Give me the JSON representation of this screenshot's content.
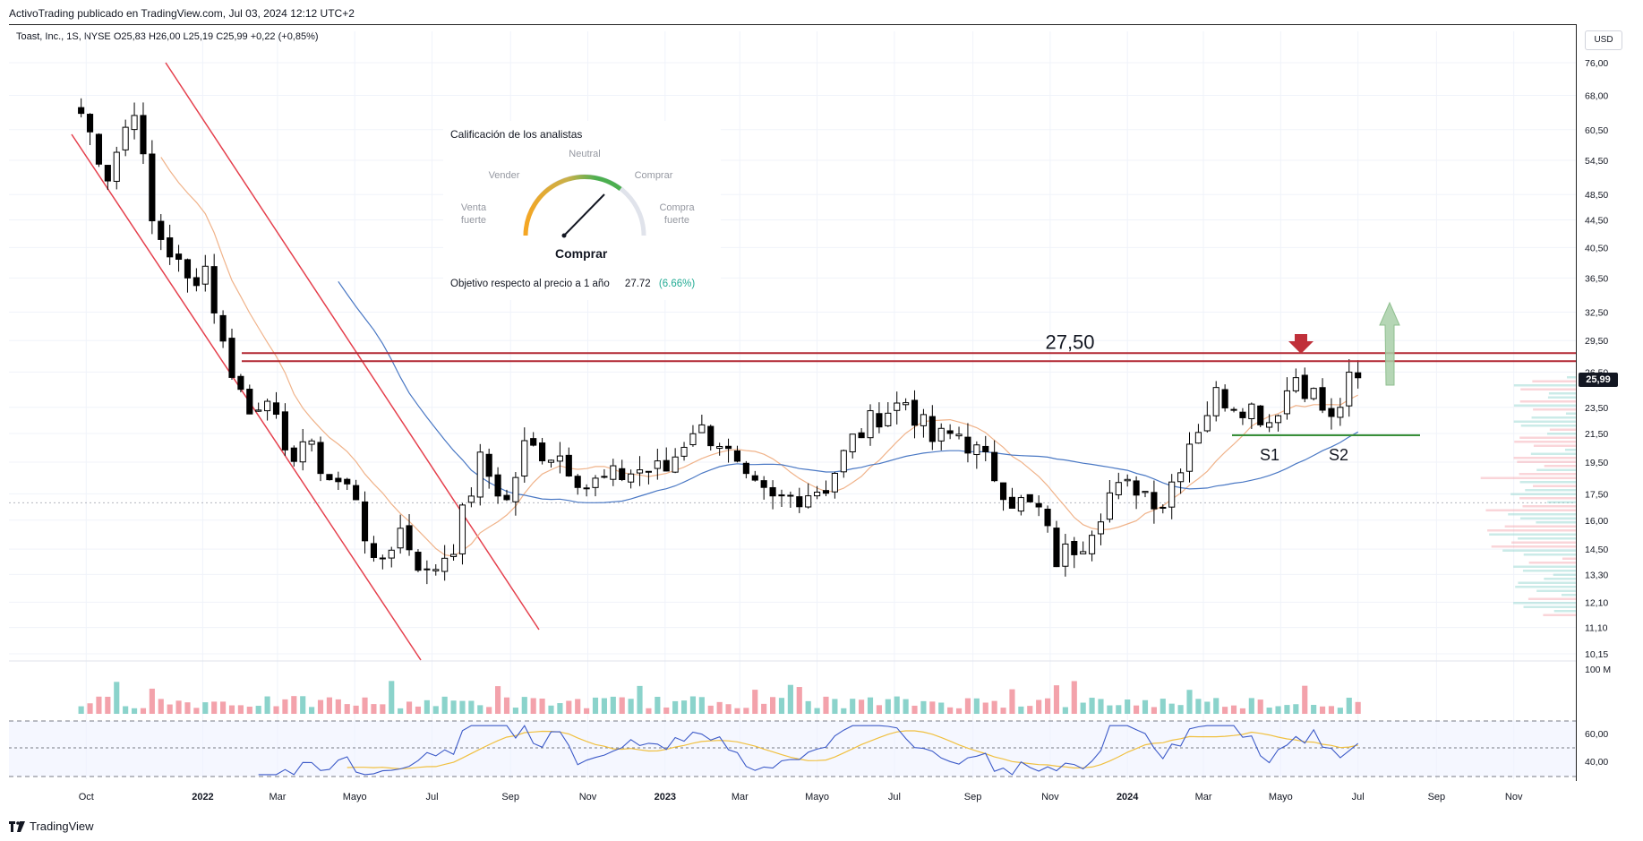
{
  "header": {
    "published_by": "ActivoTrading publicado en TradingView.com, Jul 03, 2024 12:12 UTC+2",
    "symbol_line": "Toast, Inc., 1S, NYSE  O25,83  H26,00  L25,19  C25,99  +0,22 (+0,85%)"
  },
  "price_scale": {
    "currency_button": "USD",
    "last_price_tag": "25,99",
    "volume_label": "100 M",
    "rsi_labels": [
      "60,00",
      "40,00"
    ]
  },
  "analyst_widget": {
    "title": "Calificación de los analistas",
    "labels": {
      "neutral": "Neutral",
      "sell": "Vender",
      "buy": "Comprar",
      "strong_sell": "Venta fuerte",
      "strong_buy": "Compra fuerte"
    },
    "verdict": "Comprar",
    "target_label": "Objetivo respecto al precio a 1 año",
    "target_value": "27.72",
    "target_pct": "(6.66%)"
  },
  "annotations": {
    "resistance_label": "27,50",
    "support_1": "S1",
    "support_2": "S2"
  },
  "colors": {
    "up_candle": "#ffffff",
    "down_candle": "#000000",
    "resistance": "#b22833",
    "support": "#3a8f3a",
    "channel": "#e5404d",
    "ma_fast": "#f0b38a",
    "ma_slow": "#4a78c4",
    "volume_up": "#8bd3cb",
    "volume_down": "#f3a2ab",
    "rsi_line": "#3c5ac8",
    "rsi_ma": "#f0c040",
    "up_arrow": "#a8cfa8",
    "down_arrow": "#c0303a",
    "positive_pct": "#22ab94"
  },
  "chart_data": {
    "type": "candlestick",
    "symbol": "Toast, Inc.",
    "interval": "1S",
    "exchange": "NYSE",
    "y_scale": "log",
    "y_ticks": [
      76.0,
      68.0,
      60.5,
      54.5,
      48.5,
      44.5,
      40.5,
      36.5,
      32.5,
      29.5,
      26.5,
      23.5,
      21.5,
      19.5,
      17.5,
      16.0,
      14.5,
      13.3,
      12.1,
      11.1,
      10.15
    ],
    "y_tick_labels": [
      "76,00",
      "68,00",
      "60,50",
      "54,50",
      "48,50",
      "44,50",
      "40,50",
      "36,50",
      "32,50",
      "29,50",
      "26,50",
      "23,50",
      "21,50",
      "19,50",
      "17,50",
      "16,00",
      "14,50",
      "13,30",
      "12,10",
      "11,10",
      "10,15"
    ],
    "x_tick_labels": [
      "Oct",
      "2022",
      "Mar",
      "Mayo",
      "Jul",
      "Sep",
      "Nov",
      "2023",
      "Mar",
      "Mayo",
      "Jul",
      "Sep",
      "Nov",
      "2024",
      "Mar",
      "Mayo",
      "Jul",
      "Sep",
      "Nov"
    ],
    "path": [
      [
        "2021-09-27",
        64
      ],
      [
        "2021-10-18",
        52
      ],
      [
        "2021-11-08",
        66
      ],
      [
        "2021-11-22",
        44
      ],
      [
        "2021-12-06",
        40
      ],
      [
        "2021-12-20",
        36
      ],
      [
        "2022-01-03",
        38
      ],
      [
        "2022-01-17",
        29
      ],
      [
        "2022-02-07",
        23
      ],
      [
        "2022-02-21",
        25
      ],
      [
        "2022-03-07",
        19.5
      ],
      [
        "2022-03-21",
        21
      ],
      [
        "2022-04-11",
        18.5
      ],
      [
        "2022-05-02",
        17.5
      ],
      [
        "2022-05-16",
        13.5
      ],
      [
        "2022-06-06",
        15.5
      ],
      [
        "2022-06-27",
        13.2
      ],
      [
        "2022-07-18",
        14.8
      ],
      [
        "2022-08-08",
        19.5
      ],
      [
        "2022-08-29",
        17
      ],
      [
        "2022-09-12",
        20.5
      ],
      [
        "2022-10-10",
        20
      ],
      [
        "2022-10-31",
        18
      ],
      [
        "2022-11-21",
        18.5
      ],
      [
        "2022-12-12",
        19
      ],
      [
        "2023-01-02",
        19
      ],
      [
        "2023-01-23",
        22
      ],
      [
        "2023-02-13",
        21
      ],
      [
        "2023-03-06",
        18
      ],
      [
        "2023-03-27",
        17
      ],
      [
        "2023-04-17",
        17.5
      ],
      [
        "2023-05-08",
        18
      ],
      [
        "2023-05-29",
        21
      ],
      [
        "2023-06-19",
        23
      ],
      [
        "2023-07-10",
        24
      ],
      [
        "2023-07-31",
        21
      ],
      [
        "2023-08-21",
        21.5
      ],
      [
        "2023-09-11",
        19.5
      ],
      [
        "2023-10-02",
        17.2
      ],
      [
        "2023-10-23",
        16.5
      ],
      [
        "2023-11-06",
        14
      ],
      [
        "2023-11-27",
        15
      ],
      [
        "2023-12-18",
        17.5
      ],
      [
        "2024-01-08",
        18
      ],
      [
        "2024-01-29",
        17
      ],
      [
        "2024-02-19",
        21
      ],
      [
        "2024-03-11",
        24.5
      ],
      [
        "2024-04-08",
        23.5
      ],
      [
        "2024-04-22",
        22.5
      ],
      [
        "2024-05-13",
        26.2
      ],
      [
        "2024-05-27",
        24.5
      ],
      [
        "2024-06-10",
        22.3
      ],
      [
        "2024-06-24",
        25.5
      ],
      [
        "2024-07-01",
        25.99
      ]
    ],
    "last_close": 25.99,
    "resistance_level": 27.5,
    "support_level": 21.5,
    "volume_axis_label": "100 M",
    "rsi_levels": [
      60,
      40
    ]
  }
}
